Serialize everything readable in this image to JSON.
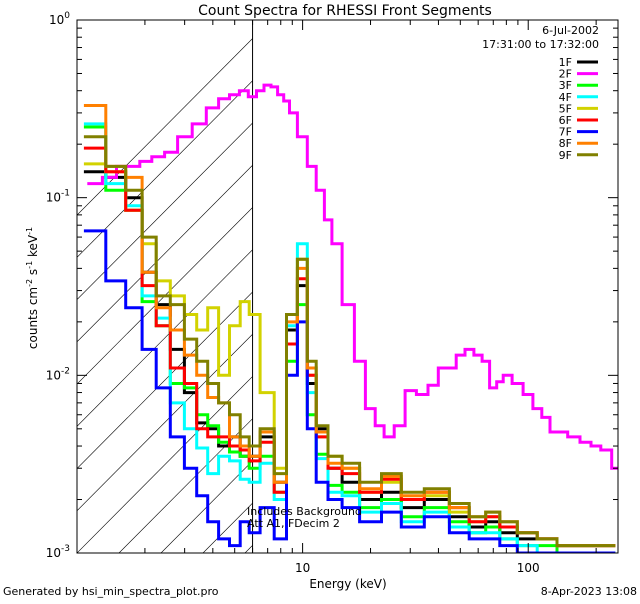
{
  "chart_data": {
    "type": "line",
    "title": "Count Spectra for RHESSI Front Segments",
    "xlabel": "Energy (keV)",
    "ylabel_main": "counts cm",
    "ylabel_sup1": "-2",
    "ylabel_mid": " s",
    "ylabel_sup2": "-1",
    "ylabel_end": " keV",
    "ylabel_sup3": "-1",
    "xscale": "log",
    "yscale": "log",
    "xlim": [
      1,
      250
    ],
    "ylim": [
      0.001,
      1
    ],
    "x_ticks": [
      {
        "value": 10,
        "label": "10"
      },
      {
        "value": 100,
        "label": "100"
      }
    ],
    "y_ticks": [
      {
        "value": 0.001,
        "base": "10",
        "exp": "-3"
      },
      {
        "value": 0.01,
        "base": "10",
        "exp": "-2"
      },
      {
        "value": 0.1,
        "base": "10",
        "exp": "-1"
      },
      {
        "value": 1,
        "base": "10",
        "exp": "0"
      }
    ],
    "date": "6-Jul-2002",
    "time_range": "17:31:00 to 17:32:00",
    "annotation_line1": "Includes Background",
    "annotation_line2": "Att A1, FDecim 2",
    "shaded_region_max_kev": 6,
    "series": [
      {
        "name": "1F",
        "color": "#000000",
        "x": [
          1.2,
          1.5,
          1.8,
          2.1,
          2.4,
          2.8,
          3.2,
          3.6,
          4.0,
          4.5,
          5.0,
          5.6,
          6.0,
          7,
          8,
          9,
          10,
          11,
          12,
          14,
          16,
          20,
          25,
          30,
          40,
          50,
          60,
          70,
          80,
          100,
          120,
          150,
          180,
          220
        ],
        "y": [
          0.14,
          0.13,
          0.1,
          0.038,
          0.025,
          0.014,
          0.008,
          0.0054,
          0.005,
          0.004,
          0.0045,
          0.0035,
          0.0035,
          0.0045,
          0.0025,
          0.018,
          0.032,
          0.009,
          0.005,
          0.003,
          0.0025,
          0.002,
          0.0022,
          0.0018,
          0.002,
          0.0016,
          0.0014,
          0.0015,
          0.0013,
          0.0012,
          0.0012,
          0.0011,
          0.0011,
          0.0011
        ]
      },
      {
        "name": "2F",
        "color": "#ff00ff",
        "x": [
          1.2,
          1.4,
          1.6,
          1.8,
          2.0,
          2.3,
          2.6,
          3.0,
          3.5,
          4.0,
          4.5,
          5.0,
          5.5,
          6.0,
          6.5,
          7,
          7.5,
          8,
          8.5,
          9,
          10,
          11,
          12,
          13,
          14,
          16,
          18,
          20,
          22,
          24,
          27,
          30,
          34,
          38,
          42,
          46,
          50,
          55,
          60,
          65,
          70,
          75,
          80,
          90,
          100,
          110,
          120,
          130,
          140,
          160,
          180,
          200,
          220,
          250
        ],
        "y": [
          0.12,
          0.13,
          0.15,
          0.15,
          0.16,
          0.17,
          0.18,
          0.22,
          0.26,
          0.32,
          0.36,
          0.38,
          0.4,
          0.37,
          0.4,
          0.43,
          0.42,
          0.38,
          0.35,
          0.3,
          0.22,
          0.15,
          0.11,
          0.075,
          0.055,
          0.025,
          0.012,
          0.0065,
          0.0052,
          0.0045,
          0.0052,
          0.0082,
          0.0078,
          0.0088,
          0.011,
          0.011,
          0.013,
          0.014,
          0.013,
          0.012,
          0.0085,
          0.0092,
          0.01,
          0.009,
          0.0078,
          0.0065,
          0.0058,
          0.0048,
          0.0048,
          0.0045,
          0.0042,
          0.004,
          0.0038,
          0.003
        ]
      },
      {
        "name": "3F",
        "color": "#00ff00",
        "x": [
          1.2,
          1.5,
          1.8,
          2.1,
          2.4,
          2.8,
          3.2,
          3.6,
          4.0,
          4.5,
          5.0,
          5.6,
          6.0,
          7,
          8,
          9,
          10,
          11,
          12,
          14,
          16,
          20,
          25,
          30,
          40,
          50,
          60,
          70,
          80,
          100,
          120,
          150,
          180,
          220
        ],
        "y": [
          0.25,
          0.11,
          0.085,
          0.026,
          0.019,
          0.009,
          0.0085,
          0.006,
          0.0052,
          0.0042,
          0.0037,
          0.0035,
          0.003,
          0.0035,
          0.0022,
          0.012,
          0.025,
          0.006,
          0.0036,
          0.0024,
          0.0022,
          0.0018,
          0.002,
          0.0016,
          0.0018,
          0.0015,
          0.0013,
          0.0014,
          0.0012,
          0.0011,
          0.0011,
          0.001,
          0.001,
          0.001
        ]
      },
      {
        "name": "4F",
        "color": "#00ffff",
        "x": [
          1.2,
          1.5,
          1.8,
          2.1,
          2.4,
          2.8,
          3.2,
          3.6,
          4.0,
          4.5,
          5.0,
          5.6,
          6.0,
          7,
          8,
          9,
          10,
          11,
          12,
          14,
          16,
          20,
          25,
          30,
          40,
          50,
          60,
          70,
          80,
          100,
          120,
          150,
          180,
          220
        ],
        "y": [
          0.26,
          0.12,
          0.09,
          0.028,
          0.021,
          0.007,
          0.005,
          0.0039,
          0.0028,
          0.0035,
          0.0033,
          0.0026,
          0.0025,
          0.0032,
          0.002,
          0.019,
          0.055,
          0.008,
          0.0034,
          0.0022,
          0.0021,
          0.0017,
          0.0019,
          0.0015,
          0.0017,
          0.0014,
          0.0013,
          0.0013,
          0.0012,
          0.0011,
          0.001,
          0.001,
          0.001,
          0.001
        ]
      },
      {
        "name": "5F",
        "color": "#d2d200",
        "x": [
          1.2,
          1.5,
          1.8,
          2.1,
          2.4,
          2.8,
          3.2,
          3.6,
          4.0,
          4.5,
          5.0,
          5.6,
          6.0,
          7,
          8,
          9,
          10,
          11,
          12,
          14,
          16,
          20,
          25,
          30,
          40,
          50,
          60,
          70,
          80,
          100,
          120,
          150,
          180,
          220
        ],
        "y": [
          0.155,
          0.14,
          0.085,
          0.055,
          0.034,
          0.028,
          0.022,
          0.018,
          0.024,
          0.01,
          0.019,
          0.026,
          0.022,
          0.008,
          0.003,
          0.015,
          0.045,
          0.01,
          0.0045,
          0.0035,
          0.003,
          0.0022,
          0.0025,
          0.002,
          0.0021,
          0.0017,
          0.0015,
          0.0016,
          0.0014,
          0.0013,
          0.0012,
          0.0011,
          0.0011,
          0.0011
        ]
      },
      {
        "name": "6F",
        "color": "#ff0000",
        "x": [
          1.2,
          1.5,
          1.8,
          2.1,
          2.4,
          2.8,
          3.2,
          3.6,
          4.0,
          4.5,
          5.0,
          5.6,
          6.0,
          7,
          8,
          9,
          10,
          11,
          12,
          14,
          16,
          20,
          25,
          30,
          40,
          50,
          60,
          70,
          80,
          100,
          120,
          150,
          180,
          220
        ],
        "y": [
          0.19,
          0.14,
          0.085,
          0.032,
          0.019,
          0.011,
          0.009,
          0.005,
          0.0045,
          0.0045,
          0.004,
          0.0038,
          0.0033,
          0.0042,
          0.0022,
          0.015,
          0.035,
          0.01,
          0.0045,
          0.003,
          0.0028,
          0.0022,
          0.0026,
          0.002,
          0.0022,
          0.0018,
          0.0015,
          0.0016,
          0.0014,
          0.0013,
          0.0012,
          0.0011,
          0.0011,
          0.0011
        ]
      },
      {
        "name": "7F",
        "color": "#0000ff",
        "x": [
          1.2,
          1.5,
          1.8,
          2.1,
          2.4,
          2.8,
          3.2,
          3.6,
          4.0,
          4.5,
          5.0,
          5.6,
          6.0,
          7,
          8,
          9,
          10,
          11,
          12,
          14,
          16,
          20,
          25,
          30,
          40,
          50,
          60,
          70,
          80,
          100,
          120,
          150,
          180,
          220
        ],
        "y": [
          0.065,
          0.034,
          0.024,
          0.014,
          0.0085,
          0.0045,
          0.003,
          0.0021,
          0.0015,
          0.0012,
          0.0011,
          0.0015,
          0.0013,
          0.0018,
          0.0012,
          0.01,
          0.02,
          0.005,
          0.0025,
          0.002,
          0.0018,
          0.0015,
          0.0017,
          0.0014,
          0.0016,
          0.0013,
          0.0012,
          0.0012,
          0.0011,
          0.001,
          0.001,
          0.001,
          0.001,
          0.001
        ]
      },
      {
        "name": "8F",
        "color": "#ff8000",
        "x": [
          1.2,
          1.5,
          1.8,
          2.1,
          2.4,
          2.8,
          3.2,
          3.6,
          4.0,
          4.5,
          5.0,
          5.6,
          6.0,
          7,
          8,
          9,
          10,
          11,
          12,
          14,
          16,
          20,
          25,
          30,
          40,
          50,
          60,
          70,
          80,
          100,
          120,
          150,
          180,
          220
        ],
        "y": [
          0.33,
          0.15,
          0.13,
          0.038,
          0.024,
          0.018,
          0.013,
          0.01,
          0.0075,
          0.007,
          0.0045,
          0.004,
          0.0035,
          0.0048,
          0.0025,
          0.02,
          0.04,
          0.011,
          0.0048,
          0.0032,
          0.003,
          0.0023,
          0.0027,
          0.0021,
          0.0022,
          0.0018,
          0.0016,
          0.0017,
          0.0015,
          0.0013,
          0.0012,
          0.0011,
          0.0011,
          0.0011
        ]
      },
      {
        "name": "9F",
        "color": "#808000",
        "x": [
          1.2,
          1.5,
          1.8,
          2.1,
          2.4,
          2.8,
          3.2,
          3.6,
          4.0,
          4.5,
          5.0,
          5.6,
          6.0,
          7,
          8,
          9,
          10,
          11,
          12,
          14,
          16,
          20,
          25,
          30,
          40,
          50,
          60,
          70,
          80,
          100,
          120,
          150,
          180,
          220
        ],
        "y": [
          0.22,
          0.15,
          0.11,
          0.06,
          0.028,
          0.025,
          0.016,
          0.012,
          0.009,
          0.007,
          0.006,
          0.0045,
          0.004,
          0.005,
          0.0028,
          0.022,
          0.045,
          0.012,
          0.0052,
          0.0035,
          0.0032,
          0.0025,
          0.0028,
          0.0022,
          0.0023,
          0.0019,
          0.0016,
          0.0017,
          0.0015,
          0.0013,
          0.0012,
          0.0011,
          0.0011,
          0.0011
        ]
      }
    ]
  },
  "footer": {
    "generated_by": "Generated by hsi_min_spectra_plot.pro",
    "timestamp": "8-Apr-2023 13:08"
  }
}
